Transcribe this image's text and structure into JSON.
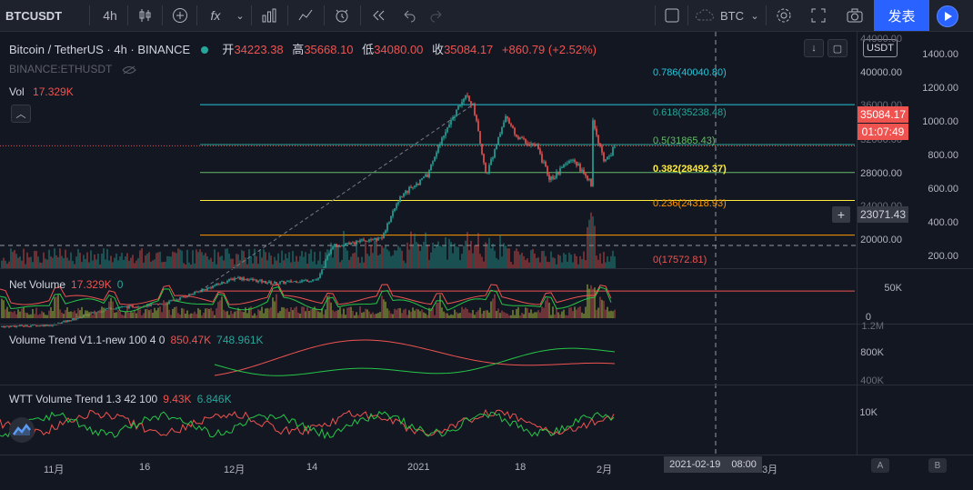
{
  "toolbar": {
    "symbol": "BTCUSDT",
    "interval": "4h",
    "fx_label": "fx",
    "compare_label": "BTC",
    "publish_label": "发表"
  },
  "legend": {
    "title": "Bitcoin / TetherUS · 4h · BINANCE",
    "open_label": "开",
    "open": "34223.38",
    "high_label": "高",
    "high": "35668.10",
    "low_label": "低",
    "low": "34080.00",
    "close_label": "收",
    "close": "35084.17",
    "change": "+860.79 (+2.52%)",
    "secondary": "BINANCE:ETHUSDT",
    "vol_label": "Vol",
    "vol_value": "17.329K"
  },
  "fib_levels": [
    {
      "label": "0.786(40040.80)",
      "color": "#26c6da"
    },
    {
      "label": "0.618(35238.48)",
      "color": "#26a69a"
    },
    {
      "label": "0.5(31865.43)",
      "color": "#66bb6a"
    },
    {
      "label": "0.382(28492.37)",
      "color": "#ffeb3b"
    },
    {
      "label": "0.236(24318.93)",
      "color": "#ff9800"
    },
    {
      "label": "0(17572.81)",
      "color": "#ef5350"
    }
  ],
  "price_axis": {
    "badge": "USDT",
    "price_ticks": [
      "40000.00",
      "36000.00",
      "32000.00",
      "28000.00",
      "24000.00",
      "20000.00"
    ],
    "price_top_partial": "44000.00",
    "vol_ticks": [
      "1400.00",
      "1200.00",
      "1000.00",
      "800.00",
      "600.00",
      "400.00",
      "200.00"
    ],
    "last_price": "35084.17",
    "countdown": "01:07:49",
    "crosshair_price": "23071.43"
  },
  "panes": {
    "net_volume": {
      "name": "Net Volume",
      "v1": "17.329K",
      "v2": "0",
      "ticks": [
        "50K",
        "0"
      ]
    },
    "volume_trend": {
      "name": "Volume Trend V1.1-new 100 4 0",
      "v1": "850.47K",
      "v2": "748.961K",
      "ticks": [
        "1.2M",
        "800K",
        "400K"
      ]
    },
    "wtt": {
      "name": "WTT Volume Trend 1.3 42 100",
      "v1": "9.43K",
      "v2": "6.846K",
      "ticks": [
        "10K"
      ]
    }
  },
  "time_axis": {
    "ticks": [
      "11月",
      "16",
      "12月",
      "14",
      "2021",
      "18",
      "2月",
      "3月"
    ],
    "crosshair_date": "2021-02-19",
    "crosshair_time": "08:00",
    "corner_a": "A",
    "corner_b": "B"
  },
  "colors": {
    "up": "#26a69a",
    "down": "#ef5350",
    "accent": "#2962ff",
    "background": "#131722"
  }
}
